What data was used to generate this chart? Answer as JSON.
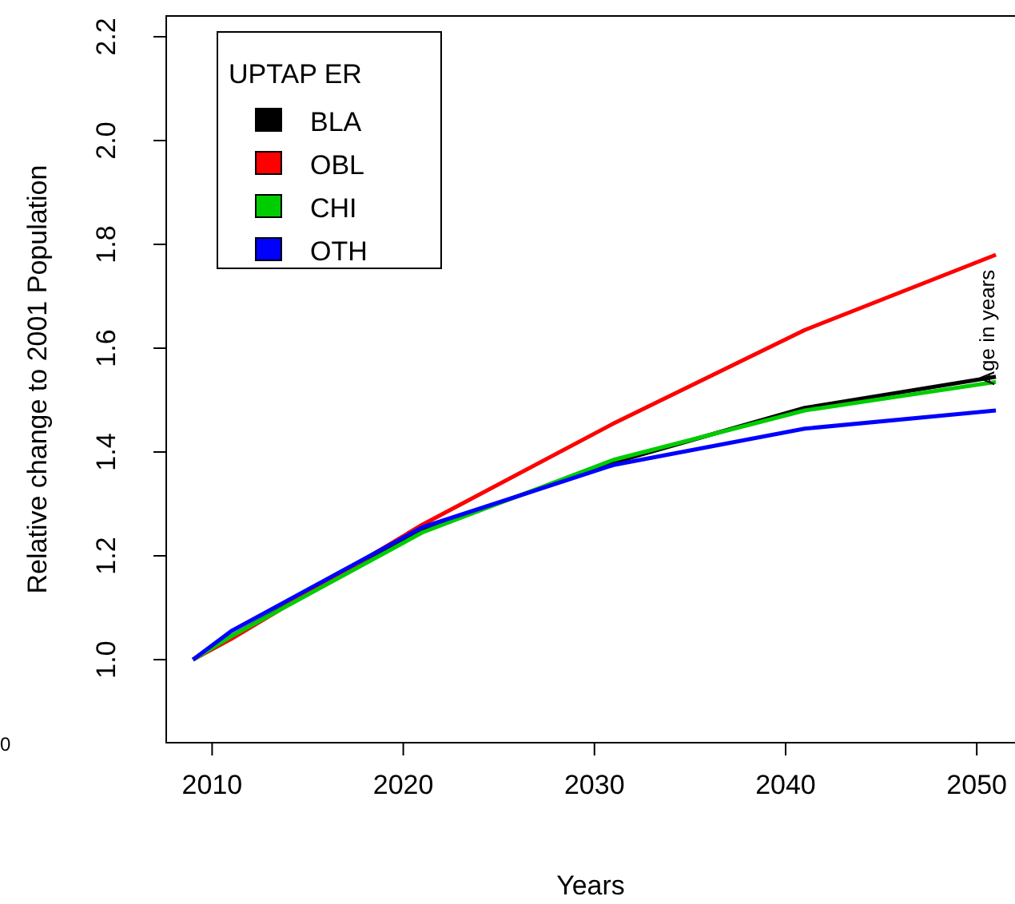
{
  "chart_data": {
    "type": "line",
    "xlabel": "Years",
    "ylabel": "Relative change to 2001 Population",
    "legend_title": "UPTAP ER",
    "legend": "top left",
    "grid": false,
    "x": [
      2009,
      2011,
      2021,
      2031,
      2041,
      2051
    ],
    "xlim": [
      2007.6,
      2052
    ],
    "xticks": [
      2010,
      2020,
      2030,
      2040,
      2050
    ],
    "ylim": [
      0.84,
      2.24
    ],
    "yticks": [
      {
        "value": 1,
        "label": "1.0"
      },
      1.2,
      1.4,
      1.6,
      1.8,
      {
        "value": 2,
        "label": "2.0"
      },
      2.2
    ],
    "series": [
      {
        "name": "BLA",
        "color": "#000000",
        "values": [
          1.0,
          1.045,
          1.25,
          1.38,
          1.485,
          1.545
        ]
      },
      {
        "name": "OBL",
        "color": "#ff0000",
        "values": [
          1.0,
          1.04,
          1.26,
          1.455,
          1.635,
          1.78
        ]
      },
      {
        "name": "CHI",
        "color": "#00cd00",
        "values": [
          1.0,
          1.045,
          1.245,
          1.385,
          1.48,
          1.535
        ]
      },
      {
        "name": "OTH",
        "color": "#0000ff",
        "values": [
          1.0,
          1.055,
          1.255,
          1.375,
          1.445,
          1.48
        ]
      }
    ],
    "annotations": [
      "Age in years",
      "0"
    ]
  }
}
